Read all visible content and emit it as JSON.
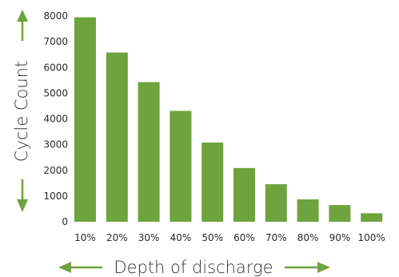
{
  "chart_data": {
    "type": "bar",
    "categories": [
      "10%",
      "20%",
      "30%",
      "40%",
      "50%",
      "60%",
      "70%",
      "80%",
      "90%",
      "100%"
    ],
    "values": [
      7950,
      6580,
      5430,
      4310,
      3080,
      2090,
      1460,
      870,
      650,
      330
    ],
    "title": "",
    "xlabel": "Depth of discharge",
    "ylabel": "Cycle Count",
    "ylim": [
      0,
      8000
    ],
    "yticks": [
      0,
      1000,
      2000,
      3000,
      4000,
      5000,
      6000,
      7000,
      8000
    ],
    "grid": false,
    "legend": "none",
    "bar_color": "#6ea33d",
    "arrow_color": "#6ea33d"
  }
}
